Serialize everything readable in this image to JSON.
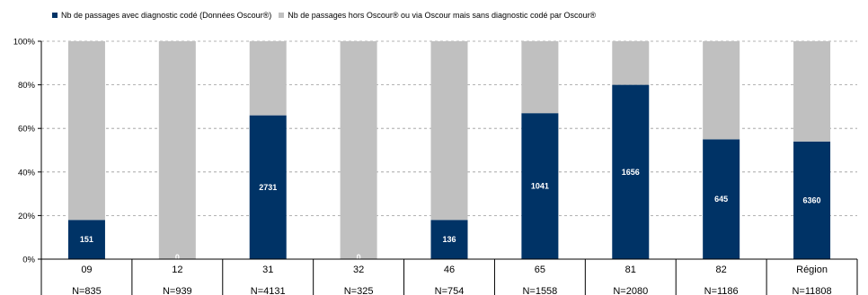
{
  "chart_data": {
    "type": "bar",
    "stacked": true,
    "categories": [
      "09",
      "12",
      "31",
      "32",
      "46",
      "65",
      "81",
      "82",
      "Région"
    ],
    "n_labels": [
      "N=835",
      "N=939",
      "N=4131",
      "N=325",
      "N=754",
      "N=1558",
      "N=2080",
      "N=1186",
      "N=11808"
    ],
    "series": [
      {
        "name": "Nb de passages avec diagnostic codé (Données Oscour®)",
        "color": "#003366",
        "values_pct": [
          18,
          0,
          66,
          0,
          18,
          67,
          80,
          55,
          54
        ],
        "labels": [
          "151",
          "0",
          "2731",
          "0",
          "136",
          "1041",
          "1656",
          "645",
          "6360"
        ]
      },
      {
        "name": "Nb de passages hors Oscour® ou via Oscour mais sans diagnostic codé par Oscour®",
        "color": "#c0c0c0",
        "values_pct": [
          82,
          100,
          34,
          100,
          82,
          33,
          20,
          45,
          46
        ]
      }
    ],
    "ylim": [
      0,
      100
    ],
    "yticks": [
      "0%",
      "20%",
      "40%",
      "60%",
      "80%",
      "100%"
    ],
    "legend_position": "top-left",
    "grid": true
  }
}
